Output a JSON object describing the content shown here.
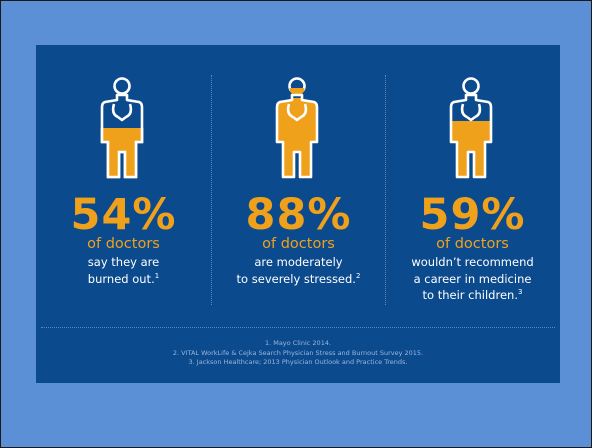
{
  "stats": [
    {
      "value": "54%",
      "label": "of doctors",
      "lines": [
        "say they are",
        "burned out."
      ],
      "ref": "1"
    },
    {
      "value": "88%",
      "label": "of doctors",
      "lines": [
        "are moderately",
        "to severely stressed."
      ],
      "ref": "2"
    },
    {
      "value": "59%",
      "label": "of doctors",
      "lines": [
        "wouldn’t recommend",
        "a career in medicine",
        "to their children."
      ],
      "ref": "3"
    }
  ],
  "footnotes": [
    "1. Mayo Clinic 2014.",
    "2. VITAL WorkLife & Cejka Search Physician Stress and Burnout Survey 2015.",
    "3. Jackson Healthcare; 2013 Physician Outlook and Practice Trends."
  ],
  "colors": {
    "background": "#5b90d6",
    "panel": "#0c4a8e",
    "accent": "#f0a11c",
    "text": "#ffffff"
  },
  "icons": [
    "doctor-icon",
    "doctor-icon",
    "doctor-icon"
  ]
}
